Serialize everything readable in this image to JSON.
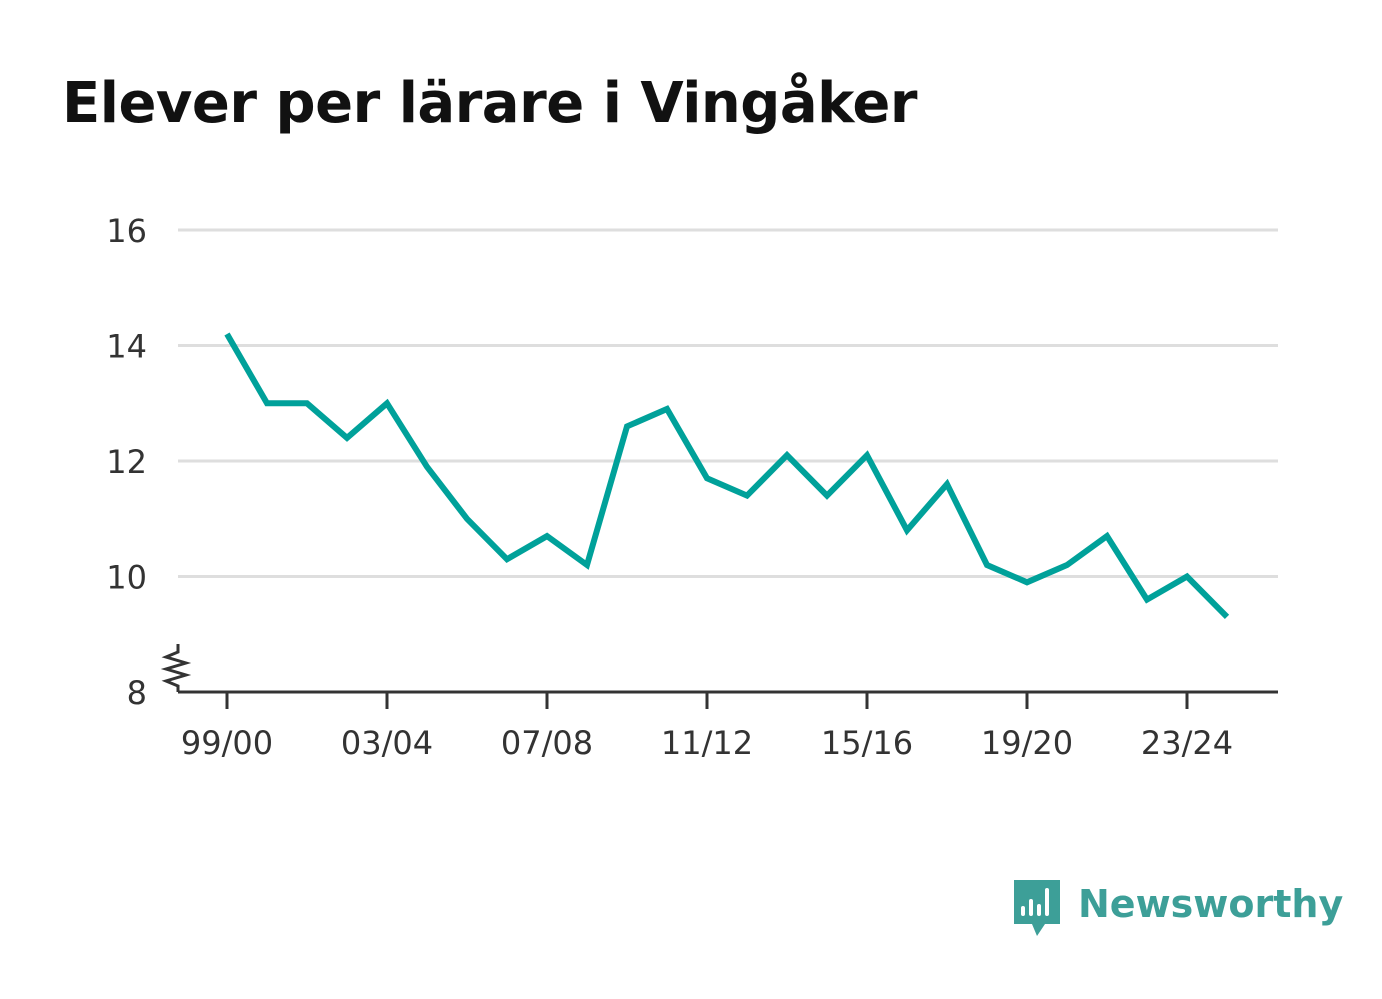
{
  "title": "Elever per lärare i Vingåker",
  "brand": {
    "name": "Newsworthy",
    "logo_icon": "bar-chart-speech-bubble-icon",
    "color": "#3d9f98"
  },
  "chart_data": {
    "type": "line",
    "title": "Elever per lärare i Vingåker",
    "xlabel": "",
    "ylabel": "",
    "categories": [
      "99/00",
      "00/01",
      "01/02",
      "02/03",
      "03/04",
      "04/05",
      "05/06",
      "06/07",
      "07/08",
      "08/09",
      "09/10",
      "10/11",
      "11/12",
      "12/13",
      "13/14",
      "14/15",
      "15/16",
      "16/17",
      "17/18",
      "18/19",
      "19/20",
      "20/21",
      "21/22",
      "22/23",
      "23/24",
      "24/25"
    ],
    "x_tick_labels": [
      "99/00",
      "03/04",
      "07/08",
      "11/12",
      "15/16",
      "19/20",
      "23/24"
    ],
    "series": [
      {
        "values": [
          14.2,
          13.0,
          13.0,
          12.4,
          13.0,
          11.9,
          11.0,
          10.3,
          10.7,
          10.2,
          12.6,
          12.9,
          11.7,
          11.4,
          12.1,
          11.4,
          12.1,
          10.8,
          11.6,
          10.2,
          9.9,
          10.2,
          10.7,
          9.6,
          10.0,
          9.3
        ],
        "color": "#00a19a"
      }
    ],
    "y_ticks": [
      8,
      10,
      12,
      14,
      16
    ],
    "ylim": [
      8,
      16
    ],
    "y_axis_break": true,
    "grid": true,
    "legend": "none"
  }
}
